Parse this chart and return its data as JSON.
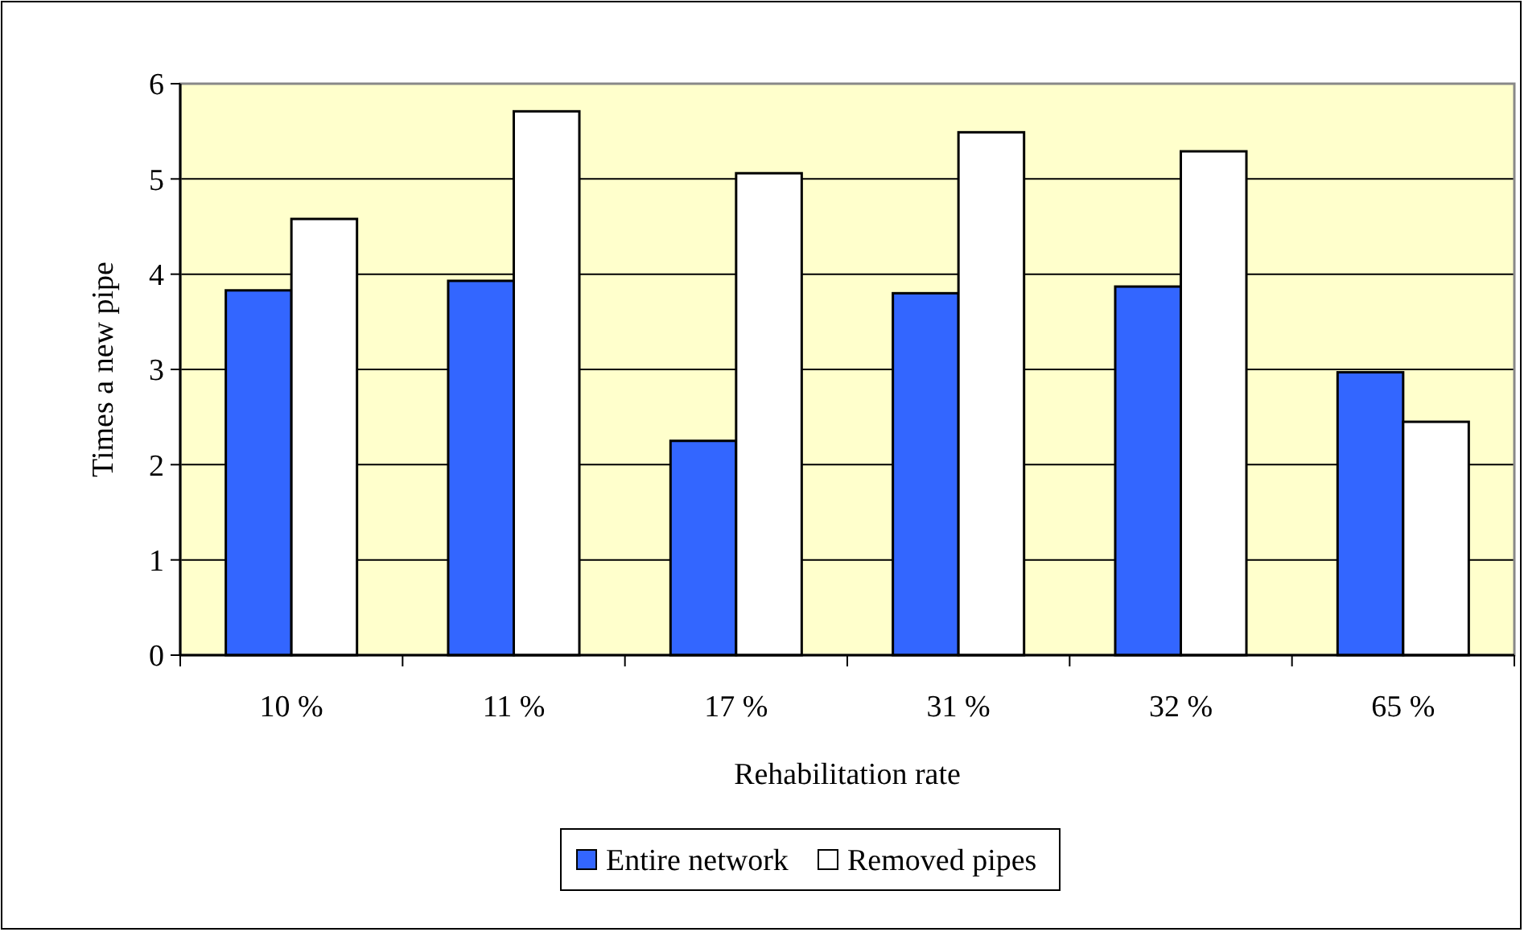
{
  "chart_data": {
    "type": "bar",
    "xlabel": "Rehabilitation rate",
    "ylabel": "Times a new pipe",
    "categories": [
      "10 %",
      "11 %",
      "17 %",
      "31 %",
      "32 %",
      "65 %"
    ],
    "series": [
      {
        "name": "Entire network",
        "color": "#3366ff",
        "values": [
          3.83,
          3.93,
          2.25,
          3.8,
          3.87,
          2.97
        ]
      },
      {
        "name": "Removed pipes",
        "color": "#ffffff",
        "values": [
          4.58,
          5.71,
          5.06,
          5.49,
          5.29,
          2.45
        ]
      }
    ],
    "ylim": [
      0,
      6
    ],
    "yticks": [
      0,
      1,
      2,
      3,
      4,
      5,
      6
    ],
    "grid": "y",
    "legend": "bottom"
  }
}
